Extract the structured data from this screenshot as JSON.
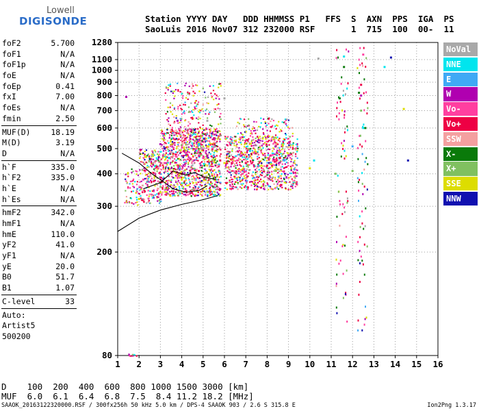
{
  "logo": {
    "line1": "Lowell",
    "line2": "DIGISONDE"
  },
  "header": {
    "line1": "Station YYYY DAY   DDD HHMMSS P1   FFS  S  AXN  PPS  IGA  PS",
    "line2": "SaoLuis 2016 Nov07 312 232000 RSF       1  715  100  00-  11"
  },
  "params": [
    {
      "name": "foF2",
      "value": "5.700"
    },
    {
      "name": "foF1",
      "value": "N/A"
    },
    {
      "name": "foF1p",
      "value": "N/A"
    },
    {
      "name": "foE",
      "value": "N/A"
    },
    {
      "name": "foEp",
      "value": "0.41"
    },
    {
      "name": "fxI",
      "value": "7.00"
    },
    {
      "name": "foEs",
      "value": "N/A"
    },
    {
      "name": "fmin",
      "value": "2.50"
    },
    {
      "sep": true
    },
    {
      "name": "MUF(D)",
      "value": "18.19"
    },
    {
      "name": "M(D)",
      "value": "3.19"
    },
    {
      "name": "D",
      "value": "N/A"
    },
    {
      "sep": true
    },
    {
      "name": "h`F",
      "value": "335.0"
    },
    {
      "name": "h`F2",
      "value": "335.0"
    },
    {
      "name": "h`E",
      "value": "N/A"
    },
    {
      "name": "h`Es",
      "value": "N/A"
    },
    {
      "sep": true
    },
    {
      "name": "hmF2",
      "value": "342.0"
    },
    {
      "name": "hmF1",
      "value": "N/A"
    },
    {
      "name": "hmE",
      "value": "110.0"
    },
    {
      "name": "yF2",
      "value": "41.0"
    },
    {
      "name": "yF1",
      "value": "N/A"
    },
    {
      "name": "yE",
      "value": "20.0"
    },
    {
      "name": "B0",
      "value": "51.7"
    },
    {
      "name": "B1",
      "value": "1.07"
    },
    {
      "sep": true
    },
    {
      "name": "C-level",
      "value": "33"
    },
    {
      "sep": true
    },
    {
      "text": "Auto:"
    },
    {
      "text": "Artist5"
    },
    {
      "text": "500200"
    }
  ],
  "legend": [
    {
      "label": "NoVal",
      "color": "#a9a9a9"
    },
    {
      "label": "NNE",
      "color": "#00e5ee"
    },
    {
      "label": "E",
      "color": "#3fa9f5"
    },
    {
      "label": "W",
      "color": "#b000b0"
    },
    {
      "label": "Vo-",
      "color": "#ff3fa0"
    },
    {
      "label": "Vo+",
      "color": "#ee0044"
    },
    {
      "label": "SSW",
      "color": "#f4a0a0"
    },
    {
      "label": "X-",
      "color": "#0a7a0a"
    },
    {
      "label": "X+",
      "color": "#80c060"
    },
    {
      "label": "SSE",
      "color": "#dddd00"
    },
    {
      "label": "NNW",
      "color": "#1010b0"
    }
  ],
  "bottom": {
    "d_line": "D    100  200  400  600  800 1000 1500 3000 [km]",
    "muf_line": "MUF  6.0  6.1  6.4  6.8  7.5  8.4 11.2 18.2 [MHz]"
  },
  "footer": {
    "file": "SAAOK_20163122320000.RSF / 300fx256h 50 kHz 5.0 km / DPS-4 SAAOK 903 / 2.6 S 315.8 E",
    "version": "Ion2Png 1.3.17"
  },
  "chart_data": {
    "type": "scatter",
    "x_range": [
      1,
      16
    ],
    "y_range": [
      80,
      1280
    ],
    "y_scale": "log-like",
    "x_ticks": [
      1,
      2,
      3,
      4,
      5,
      6,
      7,
      8,
      9,
      10,
      11,
      12,
      13,
      14,
      15,
      16
    ],
    "y_ticks": [
      80,
      200,
      300,
      400,
      500,
      600,
      700,
      800,
      900,
      1000,
      1100,
      1280
    ],
    "grid": true,
    "legend_placement": "right",
    "series": [
      {
        "color_key": "NoVal",
        "points": [
          [
            2.6,
            470
          ],
          [
            5.2,
            640
          ],
          [
            6.0,
            780
          ],
          [
            10.4,
            1110
          ]
        ]
      },
      {
        "color_key": "NNE",
        "points": [
          [
            3.4,
            460
          ],
          [
            4.8,
            520
          ],
          [
            7.2,
            490
          ],
          [
            10.2,
            450
          ],
          [
            11.6,
            1130
          ],
          [
            12.5,
            600
          ],
          [
            13.5,
            1030
          ]
        ]
      },
      {
        "color_key": "E",
        "points": [
          [
            3.9,
            420
          ],
          [
            5.5,
            470
          ],
          [
            7.6,
            430
          ],
          [
            8.8,
            450
          ],
          [
            12.0,
            510
          ]
        ]
      },
      {
        "color_key": "W",
        "points": [
          [
            1.4,
            790
          ],
          [
            3.0,
            520
          ],
          [
            3.8,
            640
          ],
          [
            4.4,
            560
          ],
          [
            5.2,
            470
          ],
          [
            6.8,
            470
          ],
          [
            7.6,
            540
          ],
          [
            8.4,
            510
          ],
          [
            9.0,
            470
          ],
          [
            12.4,
            800
          ]
        ]
      },
      {
        "color_key": "Vo-",
        "points": [
          [
            2.2,
            380
          ],
          [
            3.2,
            440
          ],
          [
            4.2,
            480
          ],
          [
            5.0,
            460
          ],
          [
            6.6,
            450
          ],
          [
            7.4,
            480
          ],
          [
            8.2,
            470
          ],
          [
            9.2,
            430
          ],
          [
            12.5,
            1150
          ]
        ]
      },
      {
        "color_key": "Vo+",
        "points": [
          [
            3.0,
            370
          ],
          [
            4.0,
            400
          ],
          [
            4.8,
            410
          ],
          [
            5.8,
            450
          ],
          [
            7.0,
            440
          ],
          [
            8.0,
            430
          ],
          [
            8.6,
            460
          ],
          [
            12.4,
            880
          ]
        ]
      },
      {
        "color_key": "SSW",
        "points": [
          [
            2.6,
            330
          ],
          [
            3.6,
            360
          ],
          [
            4.6,
            380
          ],
          [
            6.2,
            420
          ],
          [
            8.4,
            520
          ]
        ]
      },
      {
        "color_key": "X-",
        "points": [
          [
            11.4,
            780
          ],
          [
            11.6,
            1030
          ],
          [
            12.3,
            820
          ],
          [
            12.6,
            600
          ]
        ]
      },
      {
        "color_key": "X+",
        "points": [
          [
            11.2,
            400
          ],
          [
            12.0,
            410
          ],
          [
            12.4,
            700
          ]
        ]
      },
      {
        "color_key": "SSE",
        "points": [
          [
            2.0,
            320
          ],
          [
            3.0,
            340
          ],
          [
            4.0,
            380
          ],
          [
            5.2,
            510
          ],
          [
            6.0,
            440
          ],
          [
            10.0,
            420
          ],
          [
            14.4,
            710
          ]
        ]
      },
      {
        "color_key": "NNW",
        "points": [
          [
            3.2,
            500
          ],
          [
            4.6,
            590
          ],
          [
            13.8,
            1120
          ],
          [
            14.6,
            450
          ]
        ]
      }
    ],
    "traces": [
      {
        "name": "profile",
        "points": [
          [
            1.0,
            240
          ],
          [
            2.0,
            270
          ],
          [
            3.0,
            290
          ],
          [
            4.0,
            305
          ],
          [
            5.0,
            318
          ],
          [
            5.7,
            330
          ]
        ]
      },
      {
        "name": "o-trace",
        "points": [
          [
            1.2,
            480
          ],
          [
            2.0,
            440
          ],
          [
            2.6,
            400
          ],
          [
            3.0,
            380
          ],
          [
            3.6,
            350
          ],
          [
            4.2,
            340
          ],
          [
            4.8,
            345
          ],
          [
            5.2,
            360
          ]
        ]
      },
      {
        "name": "x-trace",
        "points": [
          [
            2.2,
            350
          ],
          [
            3.0,
            370
          ],
          [
            3.6,
            410
          ],
          [
            4.2,
            395
          ],
          [
            4.6,
            405
          ],
          [
            5.0,
            390
          ],
          [
            5.6,
            380
          ]
        ]
      }
    ]
  }
}
